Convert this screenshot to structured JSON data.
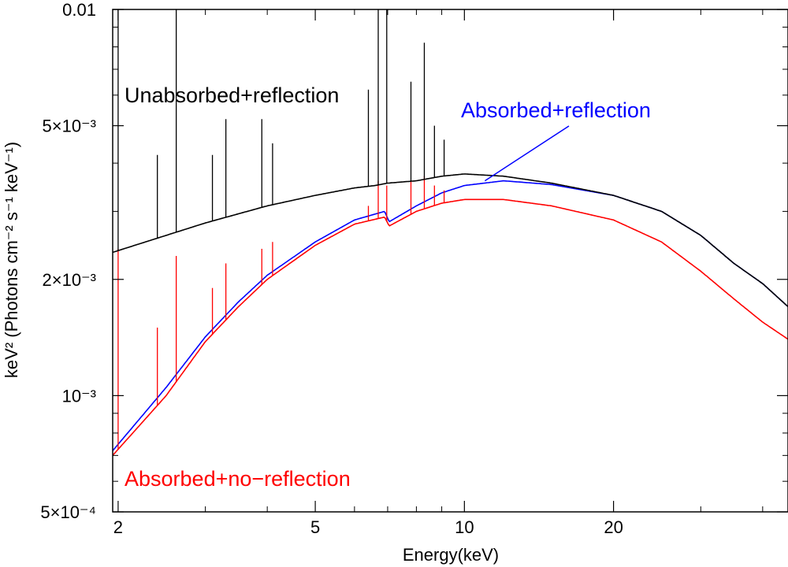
{
  "chart_data": {
    "type": "line",
    "title": "",
    "xlabel": "Energy(keV)",
    "ylabel": "keV² (Photons cm⁻² s⁻¹ keV⁻¹)",
    "xscale": "log",
    "yscale": "log",
    "xlim": [
      1.95,
      45
    ],
    "ylim": [
      0.0005,
      0.01
    ],
    "x_ticks": [
      {
        "value": 2,
        "label": "2"
      },
      {
        "value": 5,
        "label": "5"
      },
      {
        "value": 10,
        "label": "10"
      },
      {
        "value": 20,
        "label": "20"
      }
    ],
    "y_ticks": [
      {
        "value": 0.01,
        "label": "0.01"
      },
      {
        "value": 0.005,
        "label": "5×10⁻³"
      },
      {
        "value": 0.002,
        "label": "2×10⁻³"
      },
      {
        "value": 0.001,
        "label": "10⁻³"
      },
      {
        "value": 0.0005,
        "label": "5×10⁻⁴"
      }
    ],
    "series": [
      {
        "name": "Unabsorbed+reflection",
        "color": "#000000",
        "x": [
          1.95,
          2.5,
          3,
          4,
          5,
          6,
          6.6,
          7,
          8,
          9,
          10,
          12,
          15,
          20,
          25,
          30,
          35,
          40,
          45
        ],
        "values": [
          0.00235,
          0.0026,
          0.0028,
          0.0031,
          0.0033,
          0.00345,
          0.0035,
          0.00355,
          0.0036,
          0.0037,
          0.00375,
          0.0037,
          0.00355,
          0.0033,
          0.003,
          0.0026,
          0.0022,
          0.00195,
          0.0017
        ],
        "lines": [
          {
            "energy": 2.0,
            "peak": 0.01
          },
          {
            "energy": 2.4,
            "peak": 0.0042
          },
          {
            "energy": 2.62,
            "peak": 0.01
          },
          {
            "energy": 3.1,
            "peak": 0.0042
          },
          {
            "energy": 3.3,
            "peak": 0.0052
          },
          {
            "energy": 3.9,
            "peak": 0.0052
          },
          {
            "energy": 4.1,
            "peak": 0.0045
          },
          {
            "energy": 6.4,
            "peak": 0.0062
          },
          {
            "energy": 6.7,
            "peak": 0.01
          },
          {
            "energy": 6.97,
            "peak": 0.01
          },
          {
            "energy": 7.8,
            "peak": 0.0065
          },
          {
            "energy": 8.3,
            "peak": 0.0082
          },
          {
            "energy": 8.7,
            "peak": 0.005
          },
          {
            "energy": 9.1,
            "peak": 0.0046
          }
        ]
      },
      {
        "name": "Absorbed+reflection",
        "color": "#0000ff",
        "x": [
          1.95,
          2.5,
          3,
          3.5,
          4,
          5,
          6,
          6.9,
          7.05,
          8,
          9,
          10,
          12,
          15,
          20,
          25,
          30,
          35,
          40,
          45
        ],
        "values": [
          0.00072,
          0.00105,
          0.00142,
          0.00175,
          0.00205,
          0.0025,
          0.00285,
          0.003,
          0.00282,
          0.0031,
          0.00335,
          0.0035,
          0.0036,
          0.00352,
          0.0033,
          0.003,
          0.0026,
          0.0022,
          0.00195,
          0.0017
        ]
      },
      {
        "name": "Absorbed+no−reflection",
        "color": "#ff0000",
        "x": [
          1.95,
          2.5,
          3,
          3.5,
          4,
          5,
          6,
          6.9,
          7.05,
          8,
          9,
          10,
          12,
          15,
          20,
          25,
          30,
          35,
          40,
          45
        ],
        "values": [
          0.0007,
          0.001,
          0.00138,
          0.0017,
          0.002,
          0.00245,
          0.00278,
          0.0029,
          0.00275,
          0.003,
          0.00315,
          0.00322,
          0.00322,
          0.0031,
          0.00285,
          0.0025,
          0.0021,
          0.00178,
          0.00155,
          0.0014
        ],
        "lines": [
          {
            "energy": 2.0,
            "peak": 0.0024
          },
          {
            "energy": 2.4,
            "peak": 0.0015
          },
          {
            "energy": 2.62,
            "peak": 0.0023
          },
          {
            "energy": 3.1,
            "peak": 0.0019
          },
          {
            "energy": 3.3,
            "peak": 0.0022
          },
          {
            "energy": 3.9,
            "peak": 0.0024
          },
          {
            "energy": 4.1,
            "peak": 0.0025
          },
          {
            "energy": 6.4,
            "peak": 0.0031
          },
          {
            "energy": 6.7,
            "peak": 0.0036
          },
          {
            "energy": 6.97,
            "peak": 0.0035
          },
          {
            "energy": 7.8,
            "peak": 0.0036
          },
          {
            "energy": 8.3,
            "peak": 0.0037
          },
          {
            "energy": 8.7,
            "peak": 0.0035
          },
          {
            "energy": 9.1,
            "peak": 0.0034
          }
        ]
      }
    ],
    "annotations": [
      {
        "text": "Unabsorbed+reflection",
        "color": "#000000"
      },
      {
        "text": "Absorbed+reflection",
        "color": "#0000ff",
        "points_to": {
          "x": 11,
          "y": 0.0036
        }
      },
      {
        "text": "Absorbed+no−reflection",
        "color": "#ff0000"
      }
    ]
  }
}
